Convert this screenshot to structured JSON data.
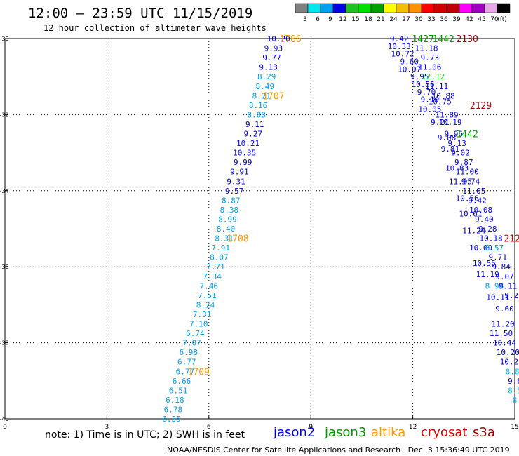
{
  "header": {
    "title": "12:00 – 23:59 UTC 11/15/2019",
    "subtitle": "12 hour collection of altimeter wave heights"
  },
  "color_scale": {
    "labels": [
      "3",
      "6",
      "9",
      "12",
      "15",
      "18",
      "21",
      "24",
      "27",
      "30",
      "33",
      "36",
      "39",
      "42",
      "45",
      "70",
      "(ft)"
    ],
    "colors": [
      "#808080",
      "#00e5ee",
      "#00a0f0",
      "#0000e0",
      "#20c020",
      "#00e000",
      "#00a000",
      "#ffff00",
      "#f0c000",
      "#ff9000",
      "#ff0000",
      "#d00000",
      "#c00000",
      "#ff00ff",
      "#a000c0",
      "#e8a8e8",
      "#000000"
    ]
  },
  "footer": {
    "note": "note: 1) Time is in UTC; 2) SWH is in feet",
    "credit": "NOAA/NESDIS Center for Satellite Applications and Research   Dec  3 15:36:49 UTC 2019",
    "satellites": [
      {
        "name": "jason2",
        "color": "#0000dd"
      },
      {
        "name": "jason3",
        "color": "#009900"
      },
      {
        "name": "altika",
        "color": "#ff9900"
      },
      {
        "name": "cryosat",
        "color": "#dd0000"
      },
      {
        "name": "s3a",
        "color": "#990000"
      }
    ]
  },
  "chart_data": {
    "type": "scatter",
    "title": "12:00 – 23:59 UTC 11/15/2019",
    "xlim": [
      0,
      15
    ],
    "ylim": [
      -40,
      -30
    ],
    "xticks": [
      "0",
      "3",
      "6",
      "9",
      "12",
      "15"
    ],
    "yticks": [
      "-30",
      "-32",
      "-34",
      "-36",
      "-38",
      "-40"
    ],
    "grid": true,
    "tracks": [
      {
        "satellite": "jason2",
        "color_low": "#00a0f0",
        "color_high": "#0000dd",
        "points": [
          {
            "x": 8.05,
            "y": -30.0,
            "v": "10.20"
          },
          {
            "x": 7.9,
            "y": -30.25,
            "v": "9.93"
          },
          {
            "x": 7.85,
            "y": -30.5,
            "v": "9.77"
          },
          {
            "x": 7.75,
            "y": -30.75,
            "v": "9.13"
          },
          {
            "x": 7.7,
            "y": -31.0,
            "v": "8.29"
          },
          {
            "x": 7.65,
            "y": -31.25,
            "v": "8.49"
          },
          {
            "x": 7.55,
            "y": -31.5,
            "v": "8.21"
          },
          {
            "x": 7.45,
            "y": -31.75,
            "v": "8.16"
          },
          {
            "x": 7.4,
            "y": -32.0,
            "v": "8.88"
          },
          {
            "x": 7.35,
            "y": -32.25,
            "v": "9.11"
          },
          {
            "x": 7.3,
            "y": -32.5,
            "v": "9.27"
          },
          {
            "x": 7.15,
            "y": -32.75,
            "v": "10.21"
          },
          {
            "x": 7.05,
            "y": -33.0,
            "v": "10.35"
          },
          {
            "x": 7.0,
            "y": -33.25,
            "v": "9.99"
          },
          {
            "x": 6.9,
            "y": -33.5,
            "v": "9.91"
          },
          {
            "x": 6.8,
            "y": -33.75,
            "v": "9.31"
          },
          {
            "x": 6.75,
            "y": -34.0,
            "v": "9.57"
          },
          {
            "x": 6.65,
            "y": -34.25,
            "v": "8.87"
          },
          {
            "x": 6.6,
            "y": -34.5,
            "v": "8.38"
          },
          {
            "x": 6.55,
            "y": -34.75,
            "v": "8.99"
          },
          {
            "x": 6.5,
            "y": -35.0,
            "v": "8.40"
          },
          {
            "x": 6.45,
            "y": -35.25,
            "v": "8.31"
          },
          {
            "x": 6.35,
            "y": -35.5,
            "v": "7.91"
          },
          {
            "x": 6.3,
            "y": -35.75,
            "v": "8.07"
          },
          {
            "x": 6.2,
            "y": -36.0,
            "v": "7.71"
          },
          {
            "x": 6.1,
            "y": -36.25,
            "v": "7.34"
          },
          {
            "x": 6.0,
            "y": -36.5,
            "v": "7.46"
          },
          {
            "x": 5.95,
            "y": -36.75,
            "v": "7.51"
          },
          {
            "x": 5.9,
            "y": -37.0,
            "v": "8.24"
          },
          {
            "x": 5.8,
            "y": -37.25,
            "v": "7.31"
          },
          {
            "x": 5.7,
            "y": -37.5,
            "v": "7.10"
          },
          {
            "x": 5.6,
            "y": -37.75,
            "v": "6.74"
          },
          {
            "x": 5.5,
            "y": -38.0,
            "v": "7.07"
          },
          {
            "x": 5.4,
            "y": -38.25,
            "v": "6.98"
          },
          {
            "x": 5.35,
            "y": -38.5,
            "v": "6.77"
          },
          {
            "x": 5.3,
            "y": -38.75,
            "v": "6.77"
          },
          {
            "x": 5.2,
            "y": -39.0,
            "v": "6.66"
          },
          {
            "x": 5.1,
            "y": -39.25,
            "v": "6.51"
          },
          {
            "x": 5.0,
            "y": -39.5,
            "v": "6.18"
          },
          {
            "x": 4.95,
            "y": -39.75,
            "v": "6.78"
          },
          {
            "x": 4.9,
            "y": -40.0,
            "v": "6.35"
          }
        ],
        "time_labels": [
          {
            "x": 8.4,
            "y": -30.0,
            "t": "1706"
          },
          {
            "x": 7.9,
            "y": -31.5,
            "t": "1707"
          },
          {
            "x": 6.85,
            "y": -35.25,
            "t": "1708"
          },
          {
            "x": 5.7,
            "y": -38.75,
            "t": "1709"
          }
        ]
      },
      {
        "satellite": "jason3",
        "color_low": "#00a0f0",
        "color_high": "#0000dd",
        "points": [
          {
            "x": 11.6,
            "y": -30.0,
            "v": "9.42"
          },
          {
            "x": 11.6,
            "y": -30.2,
            "v": "10.33"
          },
          {
            "x": 11.7,
            "y": -30.4,
            "v": "10.72"
          },
          {
            "x": 11.9,
            "y": -30.6,
            "v": "9.60"
          },
          {
            "x": 11.9,
            "y": -30.8,
            "v": "10.07"
          },
          {
            "x": 12.2,
            "y": -31.0,
            "v": "9.95"
          },
          {
            "x": 12.3,
            "y": -31.2,
            "v": "10.56"
          },
          {
            "x": 12.4,
            "y": -31.4,
            "v": "9.70"
          },
          {
            "x": 12.5,
            "y": -31.6,
            "v": "9.10"
          },
          {
            "x": 12.5,
            "y": -31.85,
            "v": "10.05"
          },
          {
            "x": 12.8,
            "y": -32.2,
            "v": "9.21"
          },
          {
            "x": 13.0,
            "y": -32.6,
            "v": "9.08"
          },
          {
            "x": 13.1,
            "y": -32.9,
            "v": "9.81"
          },
          {
            "x": 13.3,
            "y": -33.4,
            "v": "10.83"
          },
          {
            "x": 13.4,
            "y": -33.75,
            "v": "11.05"
          },
          {
            "x": 13.6,
            "y": -34.2,
            "v": "10.56"
          },
          {
            "x": 13.7,
            "y": -34.6,
            "v": "10.61"
          },
          {
            "x": 13.8,
            "y": -35.05,
            "v": "11.24"
          },
          {
            "x": 14.0,
            "y": -35.5,
            "v": "10.09"
          },
          {
            "x": 14.1,
            "y": -35.9,
            "v": "10.55"
          },
          {
            "x": 14.2,
            "y": -36.2,
            "v": "11.19"
          },
          {
            "x": 14.4,
            "y": -36.5,
            "v": "8.98"
          },
          {
            "x": 14.5,
            "y": -36.8,
            "v": "10.11"
          },
          {
            "x": 14.7,
            "y": -37.1,
            "v": "9.60"
          }
        ],
        "time_labels": [
          {
            "x": 12.3,
            "y": -30.0,
            "t": "1427"
          }
        ]
      },
      {
        "satellite": "jason3",
        "color_low": "#00a0f0",
        "color_high": "#0000dd",
        "points": [
          {
            "x": 12.4,
            "y": -30.25,
            "v": "11.18"
          },
          {
            "x": 12.5,
            "y": -30.5,
            "v": "9.73"
          },
          {
            "x": 12.5,
            "y": -30.75,
            "v": "11.06"
          },
          {
            "x": 12.6,
            "y": -31.0,
            "v": "12.12"
          },
          {
            "x": 12.7,
            "y": -31.25,
            "v": "11.11"
          },
          {
            "x": 12.9,
            "y": -31.5,
            "v": "10.88"
          },
          {
            "x": 12.8,
            "y": -31.65,
            "v": "10.75"
          },
          {
            "x": 13.0,
            "y": -32.0,
            "v": "11.89"
          },
          {
            "x": 13.1,
            "y": -32.2,
            "v": "10.19"
          },
          {
            "x": 13.2,
            "y": -32.5,
            "v": "9.96"
          },
          {
            "x": 13.3,
            "y": -32.75,
            "v": "9.13"
          },
          {
            "x": 13.4,
            "y": -33.0,
            "v": "9.02"
          },
          {
            "x": 13.5,
            "y": -33.25,
            "v": "9.87"
          },
          {
            "x": 13.6,
            "y": -33.5,
            "v": "11.00"
          },
          {
            "x": 13.7,
            "y": -33.75,
            "v": "9.74"
          },
          {
            "x": 13.8,
            "y": -34.0,
            "v": "11.05"
          },
          {
            "x": 13.9,
            "y": -34.25,
            "v": "9.42"
          },
          {
            "x": 14.0,
            "y": -34.5,
            "v": "10.08"
          },
          {
            "x": 14.1,
            "y": -34.75,
            "v": "9.40"
          },
          {
            "x": 14.2,
            "y": -35.0,
            "v": "9.28"
          },
          {
            "x": 14.3,
            "y": -35.25,
            "v": "10.18"
          },
          {
            "x": 14.4,
            "y": -35.5,
            "v": "8.57"
          },
          {
            "x": 14.5,
            "y": -35.75,
            "v": "9.71"
          },
          {
            "x": 14.6,
            "y": -36.0,
            "v": "9.84"
          },
          {
            "x": 14.7,
            "y": -36.25,
            "v": "9.07"
          },
          {
            "x": 14.8,
            "y": -36.5,
            "v": "9.11"
          },
          {
            "x": 14.9,
            "y": -36.75,
            "v": "9.2"
          }
        ],
        "time_labels": [
          {
            "x": 12.9,
            "y": -30.0,
            "t": "1442"
          },
          {
            "x": 13.6,
            "y": -32.5,
            "t": "1442"
          }
        ]
      },
      {
        "satellite": "cryosat",
        "color_low": "#00c0f0",
        "color_high": "#0000dd",
        "points": [
          {
            "x": 14.65,
            "y": -37.5,
            "v": "11.20"
          },
          {
            "x": 14.6,
            "y": -37.75,
            "v": "11.50"
          },
          {
            "x": 14.7,
            "y": -38.0,
            "v": "10.44"
          },
          {
            "x": 14.8,
            "y": -38.25,
            "v": "10.20"
          },
          {
            "x": 14.9,
            "y": -38.5,
            "v": "10.22"
          },
          {
            "x": 15.0,
            "y": -38.75,
            "v": "8.87"
          },
          {
            "x": 15.0,
            "y": -39.0,
            "v": "9.6"
          },
          {
            "x": 15.0,
            "y": -39.25,
            "v": "8.5"
          },
          {
            "x": 15.0,
            "y": -39.5,
            "v": "8"
          }
        ],
        "time_labels": [
          {
            "x": 13.6,
            "y": -30.0,
            "t": "2130"
          },
          {
            "x": 14.0,
            "y": -31.75,
            "t": "2129"
          },
          {
            "x": 15.0,
            "y": -35.25,
            "t": "2127"
          }
        ]
      }
    ]
  }
}
